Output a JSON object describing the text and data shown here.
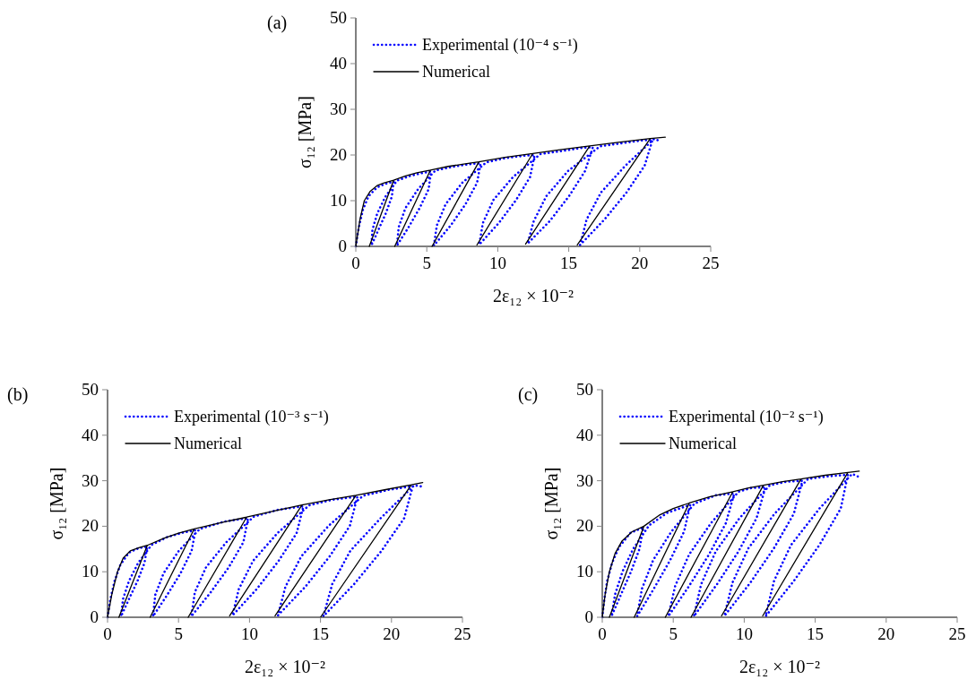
{
  "chart_data": [
    {
      "type": "line",
      "annotations": [
        "(a)"
      ],
      "xlabel": "2ε₁₂ × 10⁻²",
      "ylabel": "σ₁₂ [MPa]",
      "xlim": [
        0,
        25
      ],
      "ylim": [
        0,
        50
      ],
      "xticks": [
        0,
        5,
        10,
        15,
        20,
        25
      ],
      "yticks": [
        0,
        10,
        20,
        30,
        40,
        50
      ],
      "grid": false,
      "legend": "top left",
      "series": [
        {
          "name": "Experimental (10⁻⁴ s⁻¹)",
          "color": "#0000ff",
          "line_style": "dotted",
          "x": [
            0,
            0.2,
            0.5,
            0.9,
            1.5,
            2,
            2.67,
            2.54,
            2.11,
            1.59,
            1.1,
            1.17,
            1.51,
            2.09,
            2.9,
            3.8,
            4.6,
            5.3,
            5.13,
            4.5,
            3.72,
            2.9,
            3.02,
            3.5,
            4.38,
            5.6,
            6.8,
            8.0,
            8.8,
            8.54,
            7.72,
            6.69,
            5.5,
            5.71,
            6.32,
            7.49,
            9.2,
            10.5,
            12.0,
            12.6,
            12.28,
            11.3,
            10.07,
            8.7,
            8.95,
            9.7,
            11.08,
            13.0,
            14.8,
            16.0,
            16.7,
            16.15,
            15.02,
            13.65,
            12.1,
            12.53,
            13.42,
            14.95,
            17.2,
            18.8,
            20.2,
            20.9,
            20.35,
            19.07,
            17.52,
            15.8,
            16.26,
            17.27,
            19.0,
            21.0,
            21.5
          ],
          "values": [
            0,
            4,
            8,
            11,
            12.9,
            13.6,
            14.2,
            10.9,
            7.2,
            3.6,
            0.2,
            3.6,
            7.2,
            10.9,
            14.4,
            15.4,
            16.0,
            16.4,
            12.5,
            8.4,
            4.2,
            0.2,
            4.2,
            8.4,
            12.5,
            16.6,
            17.4,
            18.0,
            18.2,
            13.9,
            9.2,
            4.6,
            0.2,
            4.6,
            9.2,
            13.9,
            18.4,
            19.3,
            19.9,
            20.0,
            15.2,
            10.2,
            5.1,
            0.4,
            5.1,
            10.2,
            15.2,
            20.2,
            21.0,
            21.6,
            21.7,
            16.5,
            11.0,
            5.5,
            0.6,
            5.5,
            11.0,
            16.5,
            21.9,
            22.6,
            23.2,
            23.3,
            17.7,
            11.8,
            5.9,
            0.3,
            5.9,
            11.8,
            17.7,
            23.5,
            23.0
          ]
        },
        {
          "name": "Numerical",
          "color": "#000000",
          "line_style": "solid",
          "x": [
            0,
            0.3,
            0.6,
            1,
            1.5,
            2,
            2.67,
            0.95,
            2.67,
            3.5,
            4.3,
            5.26,
            2.74,
            5.26,
            6.5,
            7.6,
            8.67,
            5.37,
            8.67,
            10.5,
            12.46,
            8.53,
            12.46,
            14.5,
            16.48,
            11.96,
            16.48,
            18.6,
            20.74,
            15.6,
            20.74,
            21.8
          ],
          "values": [
            0,
            6,
            10,
            12,
            13.3,
            13.9,
            14.5,
            0,
            14.5,
            15.4,
            16.1,
            16.7,
            0,
            16.7,
            17.5,
            18.0,
            18.5,
            0,
            18.5,
            19.5,
            20.3,
            0.3,
            20.3,
            21.2,
            22.0,
            0.5,
            22.0,
            22.8,
            23.6,
            0.3,
            23.6,
            23.9
          ]
        }
      ]
    },
    {
      "type": "line",
      "annotations": [
        "(b)"
      ],
      "xlabel": "2ε₁₂ × 10⁻²",
      "ylabel": "σ₁₂ [MPa]",
      "xlim": [
        0,
        25
      ],
      "ylim": [
        0,
        50
      ],
      "xticks": [
        0,
        5,
        10,
        15,
        20,
        25
      ],
      "yticks": [
        0,
        10,
        20,
        30,
        40,
        50
      ],
      "grid": false,
      "legend": "top left",
      "series": [
        {
          "name": "Experimental (10⁻³ s⁻¹)",
          "color": "#0000ff",
          "line_style": "dotted",
          "x": [
            0,
            0.2,
            0.5,
            0.9,
            1.5,
            2.2,
            2.8,
            2.6,
            2.1,
            1.51,
            0.95,
            1.09,
            1.5,
            2.15,
            3.1,
            4.2,
            5.3,
            6.2,
            5.92,
            5.15,
            4.2,
            3.2,
            3.36,
            3.95,
            5.02,
            6.5,
            8.2,
            9.9,
            9.57,
            8.54,
            7.27,
            5.9,
            6.15,
            6.94,
            8.37,
            10.3,
            12.0,
            13.8,
            13.32,
            12.05,
            10.51,
            8.8,
            9.25,
            10.25,
            11.97,
            14.2,
            15.8,
            17.6,
            17.07,
            15.65,
            13.93,
            12.0,
            12.53,
            13.65,
            15.57,
            18.0,
            19.8,
            21.5,
            20.9,
            19.3,
            17.37,
            15.2,
            15.83,
            17.1,
            19.25,
            21.6,
            22.2
          ],
          "values": [
            0,
            4,
            8,
            11.5,
            14.2,
            15.2,
            15.5,
            11.9,
            7.9,
            4.0,
            0.2,
            4.0,
            7.9,
            11.9,
            15.9,
            17.6,
            18.6,
            19.1,
            14.6,
            9.7,
            4.9,
            0.2,
            4.9,
            9.7,
            14.6,
            19.4,
            21.0,
            21.8,
            16.5,
            11.0,
            5.5,
            0.2,
            5.5,
            11.0,
            16.5,
            22.1,
            23.6,
            24.4,
            18.5,
            12.4,
            6.2,
            0.4,
            6.2,
            12.4,
            18.5,
            24.6,
            25.8,
            26.5,
            20.1,
            13.4,
            6.7,
            0.4,
            6.7,
            13.4,
            20.1,
            26.7,
            28.0,
            28.8,
            21.8,
            14.6,
            7.3,
            0.2,
            7.3,
            14.6,
            21.8,
            29.0,
            28.7
          ]
        },
        {
          "name": "Numerical",
          "color": "#000000",
          "line_style": "solid",
          "x": [
            0,
            0.3,
            0.7,
            1.1,
            1.6,
            2.2,
            2.8,
            0.8,
            2.8,
            4.0,
            5.0,
            6.1,
            3.0,
            6.1,
            8.0,
            9.8,
            5.68,
            9.8,
            11.8,
            13.7,
            8.6,
            13.7,
            15.6,
            17.5,
            11.8,
            17.5,
            19.5,
            21.4,
            15.0,
            21.4,
            22.2
          ],
          "values": [
            0,
            5,
            10,
            13,
            14.6,
            15.3,
            15.8,
            0,
            15.8,
            17.4,
            18.5,
            19.4,
            0,
            19.4,
            20.8,
            22.0,
            0,
            22.0,
            23.4,
            24.7,
            0.3,
            24.7,
            25.8,
            26.8,
            0.3,
            26.8,
            28.0,
            29.1,
            0,
            29.1,
            29.6
          ]
        }
      ]
    },
    {
      "type": "line",
      "annotations": [
        "(c)"
      ],
      "xlabel": "2ε₁₂ × 10⁻²",
      "ylabel": "σ₁₂ [MPa]",
      "xlim": [
        0,
        25
      ],
      "ylim": [
        0,
        50
      ],
      "xticks": [
        0,
        5,
        10,
        15,
        20,
        25
      ],
      "yticks": [
        0,
        10,
        20,
        30,
        40,
        50
      ],
      "grid": false,
      "legend": "top left",
      "series": [
        {
          "name": "Experimental (10⁻² s⁻¹)",
          "color": "#0000ff",
          "line_style": "dotted",
          "x": [
            0,
            0.15,
            0.35,
            0.7,
            1.2,
            2.0,
            2.9,
            2.62,
            2.02,
            1.32,
            0.65,
            0.9,
            1.42,
            2.17,
            3.3,
            4.6,
            6.2,
            5.76,
            4.79,
            3.64,
            2.45,
            2.8,
            3.59,
            4.86,
            6.5,
            8.0,
            9.3,
            8.71,
            7.52,
            6.12,
            4.65,
            5.14,
            6.12,
            7.66,
            9.6,
            10.5,
            11.5,
            10.87,
            9.6,
            8.09,
            6.45,
            6.97,
            8.0,
            9.67,
            11.8,
            13.0,
            14.1,
            13.5,
            12.1,
            10.43,
            8.6,
            9.17,
            10.3,
            12.15,
            14.5,
            16.0,
            17.3,
            16.8,
            15.3,
            13.5,
            11.5,
            12.1,
            13.3,
            15.3,
            17.6,
            18.1
          ],
          "values": [
            0,
            4,
            8,
            12,
            15.5,
            18.6,
            19.7,
            15.0,
            10.0,
            5.0,
            0.2,
            5.0,
            10.0,
            15.0,
            20.2,
            23.0,
            24.7,
            18.8,
            12.6,
            6.3,
            0.2,
            6.3,
            12.6,
            18.8,
            25.0,
            26.8,
            27.2,
            20.7,
            13.8,
            6.9,
            0.2,
            6.9,
            13.8,
            20.7,
            27.6,
            28.4,
            28.6,
            21.8,
            14.5,
            7.3,
            0.2,
            7.3,
            14.5,
            21.8,
            29.0,
            29.8,
            30.0,
            22.8,
            15.2,
            7.6,
            0.3,
            7.6,
            15.2,
            22.8,
            30.4,
            31.0,
            31.3,
            23.9,
            15.9,
            8.0,
            0.2,
            8.0,
            15.9,
            23.9,
            31.5,
            30.8
          ]
        },
        {
          "name": "Numerical",
          "color": "#000000",
          "line_style": "solid",
          "x": [
            0,
            0.2,
            0.5,
            0.9,
            1.4,
            2.1,
            2.93,
            0.5,
            2.93,
            4.0,
            5.0,
            6.13,
            2.25,
            6.13,
            7.6,
            9.2,
            4.44,
            9.2,
            10.3,
            11.35,
            6.25,
            11.35,
            12.7,
            14.0,
            8.4,
            14.0,
            15.7,
            17.3,
            11.3,
            17.3,
            18.1
          ],
          "values": [
            0,
            5,
            10,
            14,
            16.8,
            18.8,
            20.0,
            0,
            20.0,
            22.4,
            23.9,
            25.1,
            0,
            25.1,
            26.5,
            27.6,
            0,
            27.6,
            28.4,
            29.0,
            0,
            29.0,
            29.8,
            30.4,
            0.3,
            30.4,
            31.2,
            31.8,
            0.3,
            31.8,
            32.1
          ]
        }
      ]
    }
  ]
}
